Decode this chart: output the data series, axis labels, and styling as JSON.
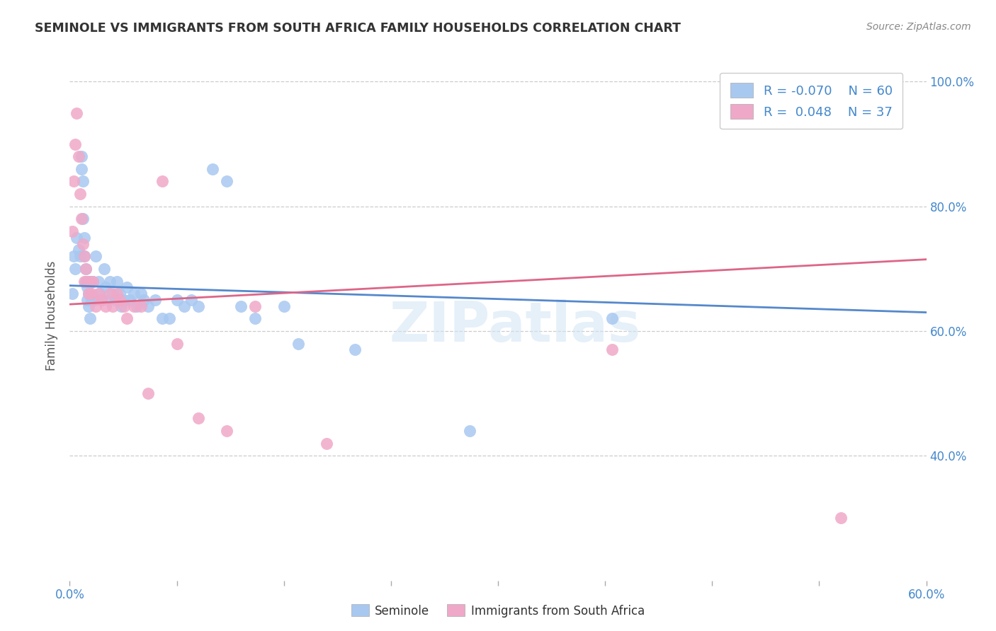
{
  "title": "SEMINOLE VS IMMIGRANTS FROM SOUTH AFRICA FAMILY HOUSEHOLDS CORRELATION CHART",
  "source": "Source: ZipAtlas.com",
  "ylabel": "Family Households",
  "x_min": 0.0,
  "x_max": 0.6,
  "y_min": 0.2,
  "y_max": 1.05,
  "yticks": [
    0.4,
    0.6,
    0.8,
    1.0
  ],
  "ytick_labels": [
    "40.0%",
    "60.0%",
    "80.0%",
    "100.0%"
  ],
  "xticks": [
    0.0,
    0.075,
    0.15,
    0.225,
    0.3,
    0.375,
    0.45,
    0.525,
    0.6
  ],
  "xtick_labels_show": [
    "0.0%",
    "",
    "",
    "",
    "",
    "",
    "",
    "",
    "60.0%"
  ],
  "watermark": "ZIPatlas",
  "legend_seminole_R": "-0.070",
  "legend_seminole_N": "60",
  "legend_immigrants_R": "0.048",
  "legend_immigrants_N": "37",
  "seminole_color": "#a8c8f0",
  "immigrants_color": "#f0a8c8",
  "trendline_seminole_color": "#5588cc",
  "trendline_immigrants_color": "#dd6688",
  "background_color": "#ffffff",
  "title_color": "#333333",
  "axis_label_color": "#4488cc",
  "seminole_x": [
    0.002,
    0.003,
    0.004,
    0.005,
    0.006,
    0.007,
    0.008,
    0.008,
    0.009,
    0.009,
    0.01,
    0.01,
    0.011,
    0.011,
    0.012,
    0.012,
    0.013,
    0.013,
    0.014,
    0.014,
    0.015,
    0.016,
    0.017,
    0.018,
    0.02,
    0.021,
    0.022,
    0.024,
    0.025,
    0.027,
    0.028,
    0.03,
    0.032,
    0.033,
    0.035,
    0.036,
    0.038,
    0.04,
    0.042,
    0.045,
    0.047,
    0.05,
    0.052,
    0.055,
    0.06,
    0.065,
    0.07,
    0.075,
    0.08,
    0.085,
    0.09,
    0.1,
    0.11,
    0.12,
    0.13,
    0.15,
    0.16,
    0.2,
    0.28,
    0.38
  ],
  "seminole_y": [
    0.66,
    0.72,
    0.7,
    0.75,
    0.73,
    0.72,
    0.88,
    0.86,
    0.84,
    0.78,
    0.75,
    0.72,
    0.7,
    0.68,
    0.67,
    0.65,
    0.66,
    0.64,
    0.68,
    0.62,
    0.65,
    0.68,
    0.65,
    0.72,
    0.68,
    0.66,
    0.65,
    0.7,
    0.67,
    0.65,
    0.68,
    0.66,
    0.65,
    0.68,
    0.66,
    0.64,
    0.65,
    0.67,
    0.65,
    0.66,
    0.64,
    0.66,
    0.65,
    0.64,
    0.65,
    0.62,
    0.62,
    0.65,
    0.64,
    0.65,
    0.64,
    0.86,
    0.84,
    0.64,
    0.62,
    0.64,
    0.58,
    0.57,
    0.44,
    0.62
  ],
  "immigrants_x": [
    0.002,
    0.003,
    0.004,
    0.005,
    0.006,
    0.007,
    0.008,
    0.009,
    0.01,
    0.01,
    0.011,
    0.012,
    0.013,
    0.014,
    0.015,
    0.016,
    0.018,
    0.02,
    0.022,
    0.025,
    0.028,
    0.03,
    0.033,
    0.035,
    0.038,
    0.04,
    0.045,
    0.05,
    0.055,
    0.065,
    0.075,
    0.09,
    0.11,
    0.13,
    0.18,
    0.38,
    0.54
  ],
  "immigrants_y": [
    0.76,
    0.84,
    0.9,
    0.95,
    0.88,
    0.82,
    0.78,
    0.74,
    0.72,
    0.68,
    0.7,
    0.68,
    0.66,
    0.68,
    0.66,
    0.68,
    0.64,
    0.66,
    0.65,
    0.64,
    0.66,
    0.64,
    0.66,
    0.65,
    0.64,
    0.62,
    0.64,
    0.64,
    0.5,
    0.84,
    0.58,
    0.46,
    0.44,
    0.64,
    0.42,
    0.57,
    0.3
  ],
  "seminole_trendline_x": [
    0.0,
    0.6
  ],
  "seminole_trendline_y": [
    0.673,
    0.63
  ],
  "immigrants_trendline_x": [
    0.0,
    0.6
  ],
  "immigrants_trendline_y": [
    0.643,
    0.715
  ]
}
